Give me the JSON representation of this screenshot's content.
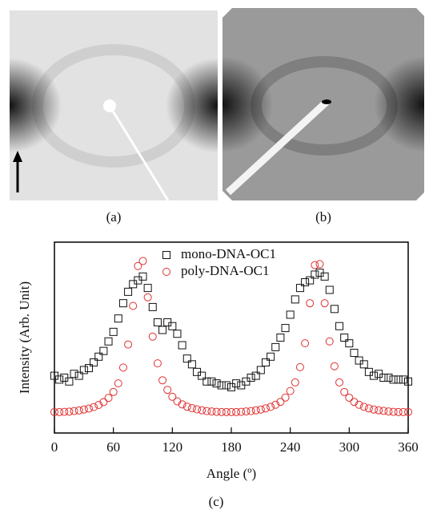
{
  "panels": {
    "a": "(a)",
    "b": "(b)",
    "c": "(c)"
  },
  "chart_data": {
    "type": "scatter",
    "x_label": "Angle (º)",
    "y_label": "Intensity (Arb. Unit)",
    "xlim": [
      0,
      360
    ],
    "xticks": [
      0,
      60,
      120,
      180,
      240,
      300,
      360
    ],
    "ylim": [
      0,
      100
    ],
    "legend": "top",
    "x": [
      0,
      5,
      10,
      15,
      20,
      25,
      30,
      35,
      40,
      45,
      50,
      55,
      60,
      65,
      70,
      75,
      80,
      85,
      90,
      95,
      100,
      105,
      110,
      115,
      120,
      125,
      130,
      135,
      140,
      145,
      150,
      155,
      160,
      165,
      170,
      175,
      180,
      185,
      190,
      195,
      200,
      205,
      210,
      215,
      220,
      225,
      230,
      235,
      240,
      245,
      250,
      255,
      260,
      265,
      270,
      275,
      280,
      285,
      290,
      295,
      300,
      305,
      310,
      315,
      320,
      325,
      330,
      335,
      340,
      345,
      350,
      355,
      360
    ],
    "series": [
      {
        "name": "mono-DNA-OC1",
        "color": "#111111",
        "marker": "square",
        "values": [
          30,
          28,
          29,
          27,
          31,
          30,
          33,
          34,
          37,
          40,
          43,
          48,
          53,
          60,
          68,
          74,
          78,
          80,
          82,
          76,
          66,
          58,
          54,
          58,
          56,
          52,
          46,
          39,
          36,
          32,
          30,
          27,
          27,
          26,
          25,
          25,
          24,
          26,
          25,
          27,
          29,
          30,
          33,
          37,
          40,
          45,
          50,
          55,
          62,
          70,
          76,
          79,
          80,
          83,
          84,
          82,
          75,
          65,
          56,
          50,
          47,
          42,
          38,
          36,
          32,
          30,
          31,
          29,
          29,
          28,
          28,
          28,
          27
        ]
      },
      {
        "name": "poly-DNA-OC1",
        "color": "#e03030",
        "marker": "circle",
        "values": [
          11,
          11,
          11.1,
          11.2,
          11.5,
          11.8,
          12.3,
          12.8,
          13.6,
          14.7,
          16.2,
          18.4,
          21.5,
          26,
          34.3,
          46.4,
          66.6,
          87.5,
          90.1,
          71.1,
          50.5,
          36.5,
          27.6,
          22.6,
          19,
          16.6,
          15,
          13.8,
          13,
          12.4,
          11.9,
          11.5,
          11.3,
          11.1,
          11,
          11,
          11,
          11,
          11.1,
          11.3,
          11.5,
          11.9,
          12.3,
          12.9,
          13.7,
          14.8,
          16.3,
          18.6,
          22,
          26.5,
          34.5,
          47,
          68,
          88,
          88.5,
          68,
          48,
          35,
          26.5,
          21.5,
          18.5,
          16.3,
          14.8,
          13.7,
          12.9,
          12.3,
          11.9,
          11.6,
          11.3,
          11.1,
          11,
          11,
          11
        ]
      }
    ]
  }
}
